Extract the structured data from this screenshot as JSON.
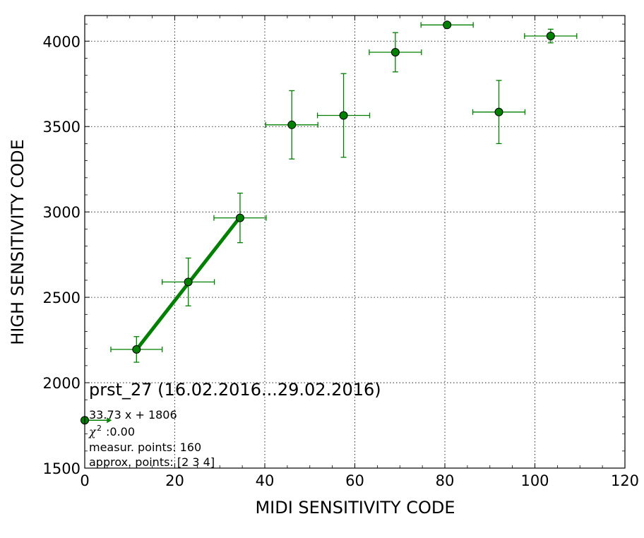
{
  "chart_data": {
    "type": "scatter",
    "xlabel": "MIDI SENSITIVITY CODE",
    "ylabel": "HIGH SENSITIVITY CODE",
    "xlim": [
      0,
      120
    ],
    "ylim": [
      1500,
      4150
    ],
    "xticks": [
      0,
      20,
      40,
      60,
      80,
      100,
      120
    ],
    "yticks": [
      1500,
      2000,
      2500,
      3000,
      3500,
      4000
    ],
    "grid": true,
    "marker_color": "#008000",
    "line_color": "#008000",
    "points": [
      {
        "x": 11.5,
        "y": 2195,
        "xerr": 5.7,
        "yerr": 75
      },
      {
        "x": 23.0,
        "y": 2590,
        "xerr": 5.8,
        "yerr": 140
      },
      {
        "x": 34.5,
        "y": 2965,
        "xerr": 5.8,
        "yerr": 145
      },
      {
        "x": 46.0,
        "y": 3510,
        "xerr": 5.8,
        "yerr": 200
      },
      {
        "x": 57.5,
        "y": 3565,
        "xerr": 5.8,
        "yerr": 245
      },
      {
        "x": 69.0,
        "y": 3935,
        "xerr": 5.8,
        "yerr": 115
      },
      {
        "x": 80.5,
        "y": 4095,
        "xerr": 5.8,
        "yerr": 0
      },
      {
        "x": 92.0,
        "y": 3585,
        "xerr": 5.8,
        "yerr": 185
      },
      {
        "x": 103.5,
        "y": 4030,
        "xerr": 5.8,
        "yerr": 40
      }
    ],
    "fit_line": {
      "slope": 33.73,
      "intercept": 1806,
      "x_start": 11.5,
      "x_end": 34.5
    },
    "origin_point": {
      "x": 0,
      "y": 1780,
      "arrow_to_x": 6
    },
    "annotations": {
      "title": "prst_27 (16.02.2016...29.02.2016)",
      "equation": "33.73 x + 1806",
      "chi_symbol": "χ",
      "chi_power": "2",
      "chi_value": ":0.00",
      "measur_points": "measur. points: 160",
      "approx_points": "approx. points: [2 3 4]"
    }
  }
}
